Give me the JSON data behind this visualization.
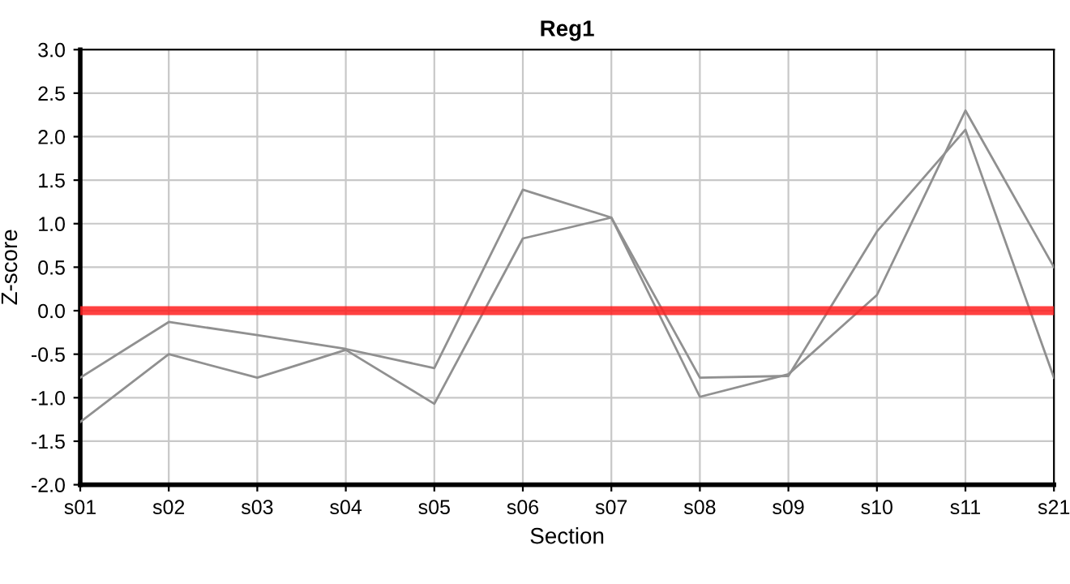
{
  "chart_data": {
    "type": "line",
    "title": "Reg1",
    "xlabel": "Section",
    "ylabel": "Z-score",
    "categories": [
      "s01",
      "s02",
      "s03",
      "s04",
      "s05",
      "s06",
      "s07",
      "s08",
      "s09",
      "s10",
      "s11",
      "s21"
    ],
    "series": [
      {
        "color": "#909090",
        "values": [
          -0.77,
          -0.13,
          -0.28,
          -0.44,
          -0.66,
          1.39,
          1.07,
          -0.77,
          -0.75,
          0.91,
          2.08,
          -0.77
        ]
      },
      {
        "color": "#909090",
        "values": [
          -1.28,
          -0.5,
          -0.77,
          -0.45,
          -1.07,
          0.83,
          1.07,
          -0.99,
          -0.73,
          0.18,
          2.3,
          0.5
        ]
      }
    ],
    "ylim": [
      -2.0,
      3.0
    ],
    "yticks": [
      {
        "value": -2,
        "label": "-2.0"
      },
      {
        "value": -1.5,
        "label": "-1.5"
      },
      {
        "value": -1,
        "label": "-1.0"
      },
      {
        "value": -0.5,
        "label": "-0.5"
      },
      {
        "value": 0,
        "label": "0.0"
      },
      {
        "value": 0.5,
        "label": "0.5"
      },
      {
        "value": 1,
        "label": "1.0"
      },
      {
        "value": 1.5,
        "label": "1.5"
      },
      {
        "value": 2,
        "label": "2.0"
      },
      {
        "value": 2.5,
        "label": "2.5"
      },
      {
        "value": 3,
        "label": "3.0"
      }
    ],
    "ref_lines": [
      {
        "axis": "y",
        "value": 0,
        "color": "#ff2020"
      }
    ],
    "grid": true,
    "legend": false,
    "marker": "none",
    "line_style": "solid"
  }
}
